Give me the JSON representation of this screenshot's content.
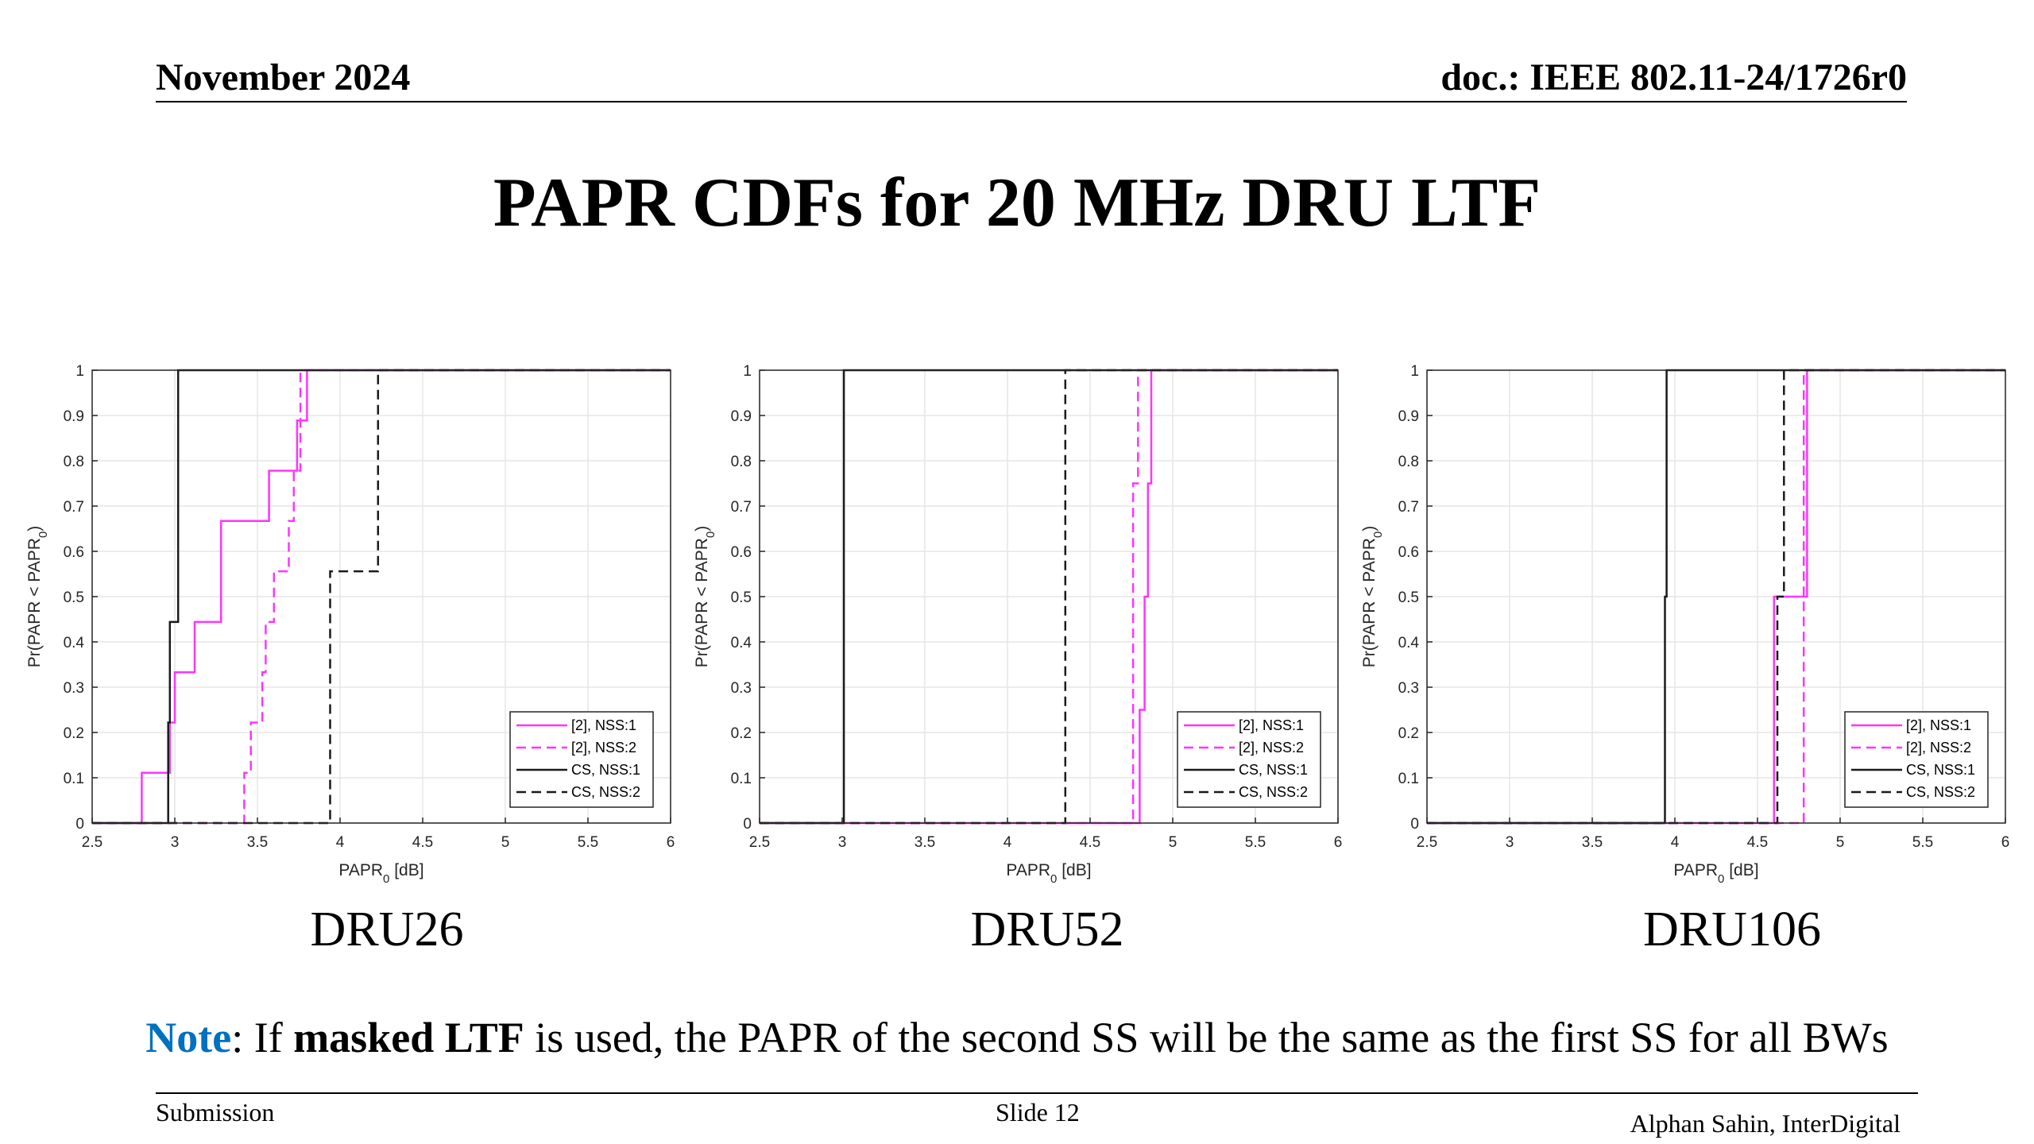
{
  "header": {
    "date": "November 2024",
    "doc": "doc.: IEEE 802.11-24/1726r0"
  },
  "title": "PAPR CDFs for 20 MHz DRU LTF",
  "colors": {
    "magenta": "#ff33ff",
    "black": "#1a1a1a",
    "grid": "#e6e6e6",
    "note_blue": "#0070c0"
  },
  "chart_data": [
    {
      "type": "line",
      "caption": "DRU26",
      "xlabel": "PAPR_0 [dB]",
      "ylabel": "Pr(PAPR < PAPR_0)",
      "xlim": [
        2.5,
        6
      ],
      "ylim": [
        0,
        1
      ],
      "xticks": [
        2.5,
        3,
        3.5,
        4,
        4.5,
        5,
        5.5,
        6
      ],
      "yticks": [
        0,
        0.1,
        0.2,
        0.3,
        0.4,
        0.5,
        0.6,
        0.7,
        0.8,
        0.9,
        1
      ],
      "grid": true,
      "legend_position": "bottom-right",
      "series": [
        {
          "name": "[2], NSS:1",
          "color": "#ff33ff",
          "dash": false,
          "x": [
            2.5,
            2.8,
            2.8,
            2.97,
            2.97,
            3.0,
            3.0,
            3.12,
            3.12,
            3.28,
            3.28,
            3.57,
            3.57,
            3.74,
            3.74,
            3.8,
            3.8,
            6
          ],
          "y": [
            0,
            0,
            0.111,
            0.111,
            0.222,
            0.222,
            0.333,
            0.333,
            0.444,
            0.444,
            0.667,
            0.667,
            0.778,
            0.778,
            0.889,
            0.889,
            1,
            1
          ]
        },
        {
          "name": "[2], NSS:2",
          "color": "#ff33ff",
          "dash": true,
          "x": [
            2.5,
            3.42,
            3.42,
            3.46,
            3.46,
            3.53,
            3.53,
            3.55,
            3.55,
            3.6,
            3.6,
            3.69,
            3.69,
            3.72,
            3.72,
            3.76,
            3.76,
            6
          ],
          "y": [
            0,
            0,
            0.111,
            0.111,
            0.222,
            0.222,
            0.333,
            0.333,
            0.444,
            0.444,
            0.556,
            0.556,
            0.667,
            0.667,
            0.778,
            0.778,
            1,
            1
          ]
        },
        {
          "name": "CS, NSS:1",
          "color": "#1a1a1a",
          "dash": false,
          "x": [
            2.5,
            2.96,
            2.96,
            2.97,
            2.97,
            3.0,
            3.0,
            3.02,
            3.02,
            6
          ],
          "y": [
            0,
            0,
            0.222,
            0.222,
            0.444,
            0.444,
            0.444,
            0.444,
            1,
            1
          ]
        },
        {
          "name": "CS, NSS:2",
          "color": "#1a1a1a",
          "dash": true,
          "x": [
            2.5,
            3.94,
            3.94,
            4.23,
            4.23,
            6
          ],
          "y": [
            0,
            0,
            0.556,
            0.556,
            1,
            1
          ]
        }
      ]
    },
    {
      "type": "line",
      "caption": "DRU52",
      "xlabel": "PAPR_0 [dB]",
      "ylabel": "Pr(PAPR < PAPR_0)",
      "xlim": [
        2.5,
        6
      ],
      "ylim": [
        0,
        1
      ],
      "xticks": [
        2.5,
        3,
        3.5,
        4,
        4.5,
        5,
        5.5,
        6
      ],
      "yticks": [
        0,
        0.1,
        0.2,
        0.3,
        0.4,
        0.5,
        0.6,
        0.7,
        0.8,
        0.9,
        1
      ],
      "grid": true,
      "legend_position": "bottom-right",
      "series": [
        {
          "name": "[2], NSS:1",
          "color": "#ff33ff",
          "dash": false,
          "x": [
            2.5,
            4.8,
            4.8,
            4.83,
            4.83,
            4.85,
            4.85,
            4.87,
            4.87,
            6
          ],
          "y": [
            0,
            0,
            0.25,
            0.25,
            0.5,
            0.5,
            0.75,
            0.75,
            1,
            1
          ]
        },
        {
          "name": "[2], NSS:2",
          "color": "#ff33ff",
          "dash": true,
          "x": [
            2.5,
            4.76,
            4.76,
            4.79,
            4.79,
            6
          ],
          "y": [
            0,
            0,
            0.75,
            0.75,
            1,
            1
          ]
        },
        {
          "name": "CS, NSS:1",
          "color": "#1a1a1a",
          "dash": false,
          "x": [
            2.5,
            3.01,
            3.01,
            6
          ],
          "y": [
            0,
            0,
            1,
            1
          ]
        },
        {
          "name": "CS, NSS:2",
          "color": "#1a1a1a",
          "dash": true,
          "x": [
            2.5,
            4.35,
            4.35,
            6
          ],
          "y": [
            0,
            0,
            1,
            1
          ]
        }
      ]
    },
    {
      "type": "line",
      "caption": "DRU106",
      "xlabel": "PAPR_0 [dB]",
      "ylabel": "Pr(PAPR < PAPR_0)",
      "xlim": [
        2.5,
        6
      ],
      "ylim": [
        0,
        1
      ],
      "xticks": [
        2.5,
        3,
        3.5,
        4,
        4.5,
        5,
        5.5,
        6
      ],
      "yticks": [
        0,
        0.1,
        0.2,
        0.3,
        0.4,
        0.5,
        0.6,
        0.7,
        0.8,
        0.9,
        1
      ],
      "grid": true,
      "legend_position": "bottom-right",
      "series": [
        {
          "name": "[2], NSS:1",
          "color": "#ff33ff",
          "dash": false,
          "x": [
            2.5,
            4.6,
            4.6,
            4.8,
            4.8,
            6
          ],
          "y": [
            0,
            0,
            0.5,
            0.5,
            1,
            1
          ]
        },
        {
          "name": "[2], NSS:2",
          "color": "#ff33ff",
          "dash": true,
          "x": [
            2.5,
            4.78,
            4.78,
            6
          ],
          "y": [
            0,
            0,
            1,
            1
          ]
        },
        {
          "name": "CS, NSS:1",
          "color": "#1a1a1a",
          "dash": false,
          "x": [
            2.5,
            3.94,
            3.94,
            3.95,
            3.95,
            6
          ],
          "y": [
            0,
            0,
            0.5,
            0.5,
            1,
            1
          ]
        },
        {
          "name": "CS, NSS:2",
          "color": "#1a1a1a",
          "dash": true,
          "x": [
            2.5,
            4.62,
            4.62,
            4.66,
            4.66,
            6
          ],
          "y": [
            0,
            0,
            0.5,
            0.5,
            1,
            1
          ]
        }
      ]
    }
  ],
  "note": {
    "label": "Note",
    "prefix": ": If ",
    "bold": "masked LTF",
    "rest": " is used, the PAPR of the second SS will be the same as the first SS for all BWs"
  },
  "footer": {
    "left": "Submission",
    "center": "Slide 12",
    "right": "Alphan Sahin, InterDigital"
  }
}
